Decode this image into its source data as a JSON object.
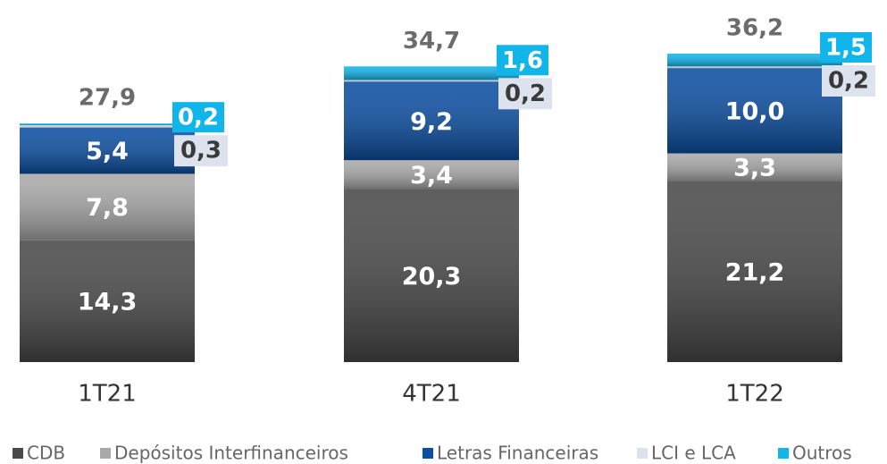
{
  "chart_data": {
    "type": "stacked_bar",
    "categories": [
      "1T21",
      "4T21",
      "1T22"
    ],
    "series": [
      {
        "name": "CDB",
        "color": "#4a4949",
        "values": [
          14.3,
          20.3,
          21.2
        ],
        "value_labels": [
          "14,3",
          "20,3",
          "21,2"
        ]
      },
      {
        "name": "Depósitos Interfinanceiros",
        "color": "#a9a9a9",
        "values": [
          7.8,
          3.4,
          3.3
        ],
        "value_labels": [
          "7,8",
          "3,4",
          "3,3"
        ]
      },
      {
        "name": "Letras Financeiras",
        "color": "#0b4fa3",
        "values": [
          5.4,
          9.2,
          10.0
        ],
        "value_labels": [
          "5,4",
          "9,2",
          "10,0"
        ]
      },
      {
        "name": "LCI e LCA",
        "color": "#dde3ee",
        "values": [
          0.3,
          0.2,
          0.2
        ],
        "value_labels": [
          "0,3",
          "0,2",
          "0,2"
        ]
      },
      {
        "name": "Outros",
        "color": "#12b5ea",
        "values": [
          0.2,
          1.6,
          1.5
        ],
        "value_labels": [
          "0,2",
          "1,6",
          "1,5"
        ]
      }
    ],
    "totals": [
      27.9,
      34.7,
      36.2
    ],
    "total_labels": [
      "27,9",
      "34,7",
      "36,2"
    ]
  }
}
